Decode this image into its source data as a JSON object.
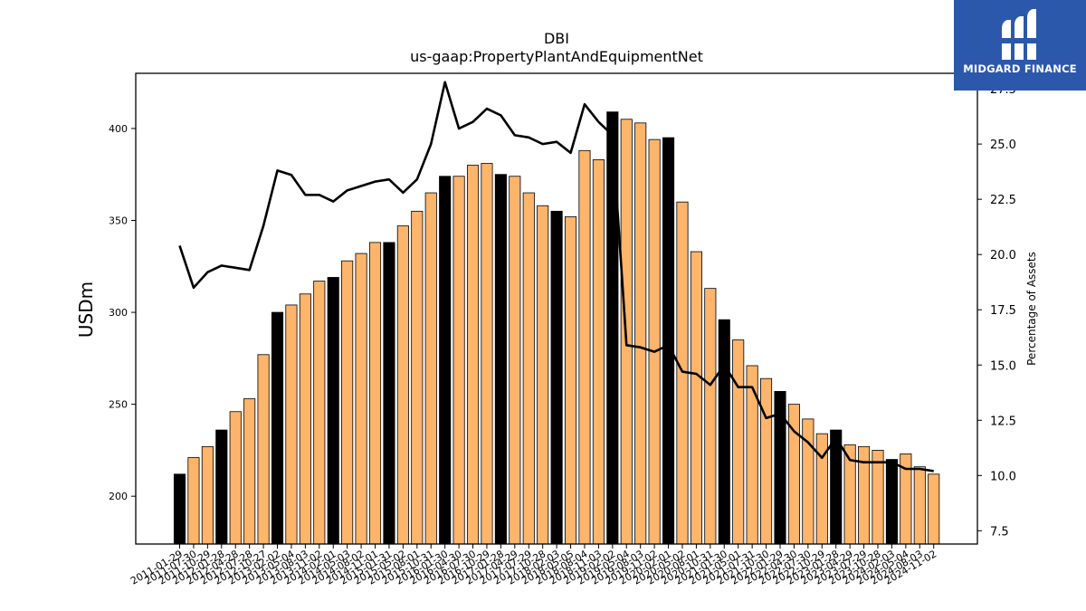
{
  "chart_data": {
    "type": "bar",
    "title": "DBI",
    "subtitle": "us-gaap:PropertyPlantAndEquipmentNet",
    "ylabel": "USDm",
    "y2label": "Percentage of Assets",
    "ylim": [
      174,
      430
    ],
    "y2lim": [
      6.9,
      28.2
    ],
    "yticks": [
      200,
      250,
      300,
      350,
      400
    ],
    "y2ticks": [
      "7.5",
      "10.0",
      "12.5",
      "15.0",
      "17.5",
      "20.0",
      "22.5",
      "25.0",
      "27.5"
    ],
    "categories": [
      "2011-01-29",
      "2011-07-30",
      "2011-10-29",
      "2012-01-28",
      "2012-04-28",
      "2012-07-28",
      "2012-10-27",
      "2013-02-02",
      "2013-05-04",
      "2013-08-03",
      "2013-11-02",
      "2014-02-01",
      "2014-05-03",
      "2014-08-02",
      "2014-11-01",
      "2015-01-31",
      "2015-05-02",
      "2015-08-01",
      "2015-10-31",
      "2016-01-30",
      "2016-04-30",
      "2016-07-30",
      "2016-10-29",
      "2017-01-28",
      "2017-04-29",
      "2017-07-29",
      "2017-10-28",
      "2018-02-03",
      "2018-05-05",
      "2018-08-04",
      "2018-11-03",
      "2019-02-02",
      "2019-05-04",
      "2019-08-03",
      "2019-11-02",
      "2020-02-01",
      "2020-05-02",
      "2020-08-01",
      "2020-10-31",
      "2021-01-30",
      "2021-05-01",
      "2021-07-31",
      "2021-10-30",
      "2022-01-29",
      "2022-04-30",
      "2022-07-30",
      "2022-10-29",
      "2023-01-28",
      "2023-04-29",
      "2023-07-29",
      "2023-10-28",
      "2024-02-03",
      "2024-05-04",
      "2024-08-03",
      "2024-11-02"
    ],
    "series": [
      {
        "type": "bar",
        "values": [
          212,
          221,
          227,
          236,
          246,
          253,
          277,
          300,
          304,
          310,
          317,
          319,
          328,
          332,
          338,
          338,
          347,
          355,
          365,
          374,
          374,
          380,
          381,
          375,
          374,
          365,
          358,
          355,
          352,
          388,
          383,
          409,
          405,
          403,
          394,
          395,
          360,
          333,
          313,
          296,
          285,
          271,
          264,
          257,
          250,
          242,
          234,
          236,
          228,
          227,
          225,
          220,
          223,
          216,
          212
        ],
        "highlight": [
          0,
          3,
          7,
          11,
          15,
          19,
          23,
          27,
          31,
          35,
          39,
          43,
          47,
          51
        ],
        "color": "#fdb46b",
        "highlight_color": "#000000"
      },
      {
        "type": "line",
        "values": [
          20.4,
          18.5,
          19.2,
          19.5,
          19.4,
          19.3,
          21.3,
          23.8,
          23.6,
          22.7,
          22.7,
          22.4,
          22.9,
          23.1,
          23.3,
          23.4,
          22.8,
          23.4,
          25.0,
          27.8,
          25.7,
          26.0,
          26.6,
          26.3,
          25.4,
          25.3,
          25.0,
          25.1,
          24.6,
          26.8,
          26.0,
          25.4,
          15.9,
          15.8,
          15.6,
          15.9,
          14.7,
          14.6,
          14.1,
          15.0,
          14.0,
          14.0,
          12.6,
          12.8,
          12.0,
          11.5,
          10.8,
          11.7,
          10.7,
          10.6,
          10.6,
          10.6,
          10.3,
          10.3,
          10.2
        ],
        "color": "#000000"
      }
    ],
    "grid": false
  },
  "logo": {
    "text": "MIDGARD FINANCE",
    "icon": "midgard-logo-icon"
  }
}
